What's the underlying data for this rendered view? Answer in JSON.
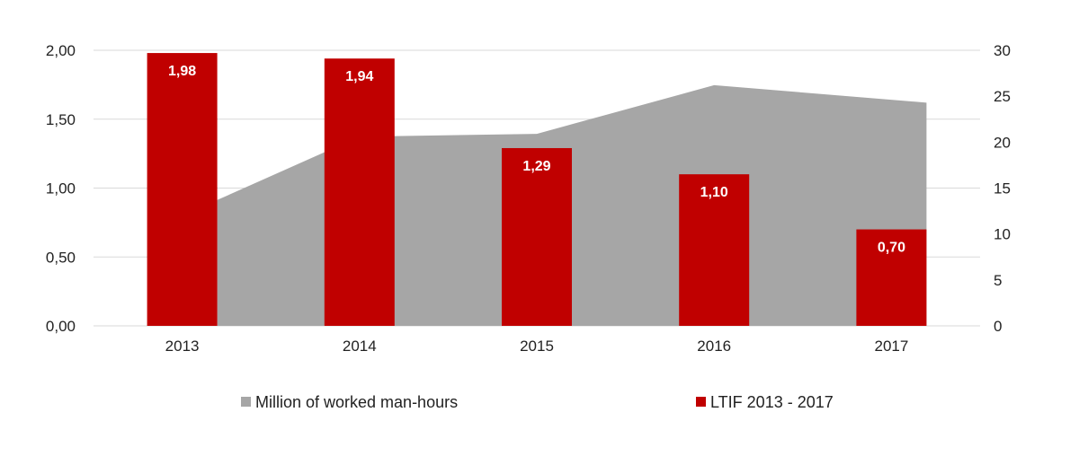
{
  "chart_data": {
    "type": "bar",
    "categories": [
      "2013",
      "2014",
      "2015",
      "2016",
      "2017"
    ],
    "series": [
      {
        "name": "Million of worked man-hours",
        "kind": "area",
        "axis": "right",
        "color": "#a6a6a6",
        "values": [
          13.7,
          20.6,
          20.9,
          26.2,
          24.3
        ]
      },
      {
        "name": "LTIF 2013 - 2017",
        "kind": "bar",
        "axis": "left",
        "color": "#c00000",
        "values": [
          1.98,
          1.94,
          1.29,
          1.1,
          0.7
        ],
        "data_labels": [
          "1,98",
          "1,94",
          "1,29",
          "1,10",
          "0,70"
        ]
      }
    ],
    "y_left": {
      "ylim": [
        0,
        2
      ],
      "ticks": [
        0,
        0.5,
        1,
        1.5,
        2
      ],
      "tick_labels": [
        "0,00",
        "0,50",
        "1,00",
        "1,50",
        "2,00"
      ]
    },
    "y_right": {
      "ylim": [
        0,
        30
      ],
      "ticks": [
        0,
        5,
        10,
        15,
        20,
        25,
        30
      ],
      "tick_labels": [
        "0",
        "5",
        "10",
        "15",
        "20",
        "25",
        "30"
      ]
    },
    "grid": true,
    "legend_position": "bottom"
  }
}
